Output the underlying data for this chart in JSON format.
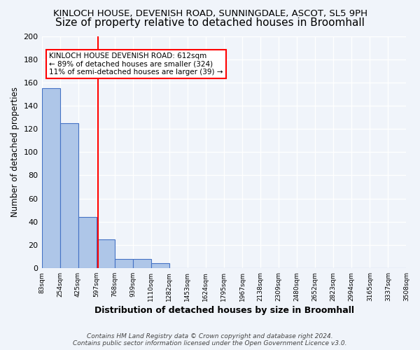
{
  "title1": "KINLOCH HOUSE, DEVENISH ROAD, SUNNINGDALE, ASCOT, SL5 9PH",
  "title2": "Size of property relative to detached houses in Broomhall",
  "xlabel": "Distribution of detached houses by size in Broomhall",
  "ylabel": "Number of detached properties",
  "bin_edges": [
    83,
    254,
    425,
    597,
    768,
    939,
    1110,
    1282,
    1453,
    1624,
    1795,
    1967,
    2138,
    2309,
    2480,
    2652,
    2823,
    2994,
    3165,
    3337,
    3508
  ],
  "bar_heights": [
    155,
    125,
    44,
    25,
    8,
    8,
    4,
    0,
    0,
    0,
    0,
    0,
    0,
    0,
    0,
    0,
    0,
    0,
    0,
    0
  ],
  "bar_color": "#aec6e8",
  "bar_edge_color": "#4472c4",
  "red_line_x": 612,
  "red_line_color": "#ff0000",
  "ylim": [
    0,
    200
  ],
  "yticks": [
    0,
    20,
    40,
    60,
    80,
    100,
    120,
    140,
    160,
    180,
    200
  ],
  "xtick_labels": [
    "83sqm",
    "254sqm",
    "425sqm",
    "597sqm",
    "768sqm",
    "939sqm",
    "1110sqm",
    "1282sqm",
    "1453sqm",
    "1624sqm",
    "1795sqm",
    "1967sqm",
    "2138sqm",
    "2309sqm",
    "2480sqm",
    "2652sqm",
    "2823sqm",
    "2994sqm",
    "3165sqm",
    "3337sqm",
    "3508sqm"
  ],
  "annotation_text": "KINLOCH HOUSE DEVENISH ROAD: 612sqm\n← 89% of detached houses are smaller (324)\n11% of semi-detached houses are larger (39) →",
  "footer_text": "Contains HM Land Registry data © Crown copyright and database right 2024.\nContains public sector information licensed under the Open Government Licence v3.0.",
  "bg_color": "#f0f4fa",
  "grid_color": "#ffffff",
  "title1_fontsize": 9.5,
  "title2_fontsize": 11
}
